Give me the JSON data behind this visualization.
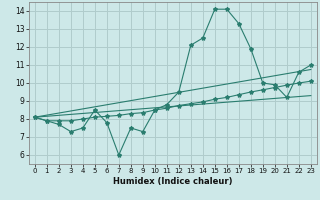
{
  "title": "",
  "xlabel": "Humidex (Indice chaleur)",
  "ylabel": "",
  "xlim": [
    -0.5,
    23.5
  ],
  "ylim": [
    5.5,
    14.5
  ],
  "xticks": [
    0,
    1,
    2,
    3,
    4,
    5,
    6,
    7,
    8,
    9,
    10,
    11,
    12,
    13,
    14,
    15,
    16,
    17,
    18,
    19,
    20,
    21,
    22,
    23
  ],
  "yticks": [
    6,
    7,
    8,
    9,
    10,
    11,
    12,
    13,
    14
  ],
  "bg_color": "#cde8e8",
  "grid_color": "#b0cccc",
  "line_color": "#2a7d6f",
  "line1_x": [
    0,
    1,
    2,
    3,
    4,
    5,
    6,
    7,
    8,
    9,
    10,
    11,
    12,
    13,
    14,
    15,
    16,
    17,
    18,
    19,
    20,
    21,
    22,
    23
  ],
  "line1_y": [
    8.1,
    7.9,
    7.7,
    7.3,
    7.5,
    8.5,
    7.8,
    6.0,
    7.5,
    7.3,
    8.5,
    8.8,
    9.5,
    12.1,
    12.5,
    14.1,
    14.1,
    13.3,
    11.9,
    10.0,
    9.9,
    9.2,
    10.6,
    11.0
  ],
  "line2_x": [
    0,
    1,
    2,
    3,
    4,
    5,
    6,
    7,
    8,
    9,
    10,
    11,
    12,
    13,
    14,
    15,
    16,
    17,
    18,
    19,
    20,
    21,
    22,
    23
  ],
  "line2_y": [
    8.1,
    7.9,
    7.9,
    7.9,
    8.0,
    8.1,
    8.15,
    8.2,
    8.3,
    8.35,
    8.5,
    8.6,
    8.75,
    8.85,
    8.95,
    9.1,
    9.2,
    9.35,
    9.5,
    9.62,
    9.75,
    9.88,
    10.0,
    10.1
  ],
  "line3_x": [
    0,
    23
  ],
  "line3_y": [
    8.1,
    10.75
  ],
  "line4_x": [
    0,
    23
  ],
  "line4_y": [
    8.1,
    9.3
  ]
}
